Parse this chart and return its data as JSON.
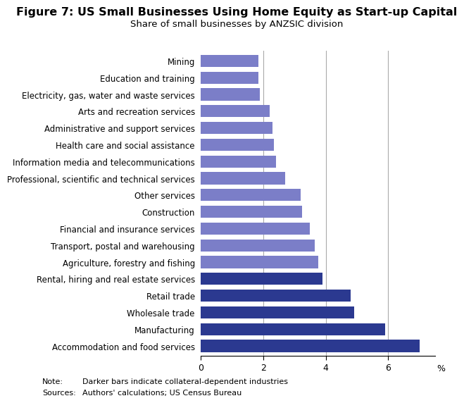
{
  "title": "Figure 7: US Small Businesses Using Home Equity as Start-up Capital",
  "subtitle": "Share of small businesses by ANZSIC division",
  "note_label": "Note:",
  "note_text": "Darker bars indicate collateral-dependent industries",
  "source_label": "Sources:",
  "source_text": "Authors' calculations; US Census Bureau",
  "categories": [
    "Accommodation and food services",
    "Manufacturing",
    "Wholesale trade",
    "Retail trade",
    "Rental, hiring and real estate services",
    "Agriculture, forestry and fishing",
    "Transport, postal and warehousing",
    "Financial and insurance services",
    "Construction",
    "Other services",
    "Professional, scientific and technical services",
    "Information media and telecommunications",
    "Health care and social assistance",
    "Administrative and support services",
    "Arts and recreation services",
    "Electricity, gas, water and waste services",
    "Education and training",
    "Mining"
  ],
  "values": [
    7.0,
    5.9,
    4.9,
    4.8,
    3.9,
    3.75,
    3.65,
    3.5,
    3.25,
    3.2,
    2.7,
    2.4,
    2.35,
    2.3,
    2.2,
    1.9,
    1.85,
    1.85
  ],
  "dark_color": "#2B3990",
  "light_color": "#7B7EC8",
  "dark_indices": [
    0,
    1,
    2,
    3,
    4
  ],
  "xlim": [
    0,
    7.5
  ],
  "xticks": [
    0,
    2,
    4,
    6
  ],
  "xlabel": "%",
  "grid_lines": [
    2,
    4,
    6
  ],
  "background_color": "#ffffff",
  "title_fontsize": 11.5,
  "subtitle_fontsize": 9.5,
  "label_fontsize": 8.5,
  "tick_fontsize": 9,
  "note_fontsize": 8,
  "bar_height": 0.72
}
